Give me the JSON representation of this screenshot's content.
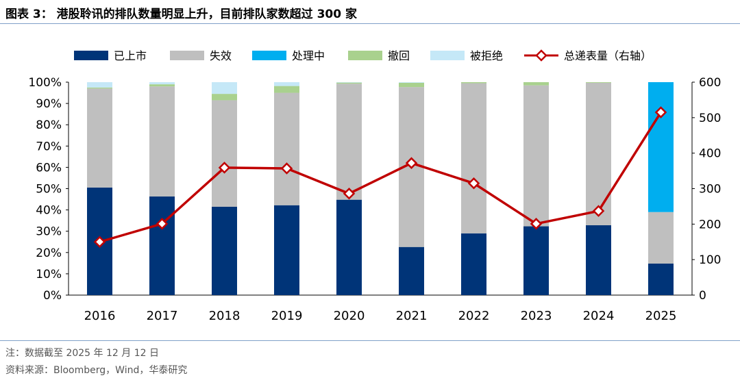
{
  "title": "图表 3：  港股聆讯的排队数量明显上升，目前排队家数超过 300 家",
  "footer": {
    "note": "注：数据截至 2025 年 12 月 12 日",
    "source": "资料来源：Bloomberg，Wind，华泰研究"
  },
  "chart_data": {
    "type": "bar",
    "stacked": true,
    "categories": [
      "2016",
      "2017",
      "2018",
      "2019",
      "2020",
      "2021",
      "2022",
      "2023",
      "2024",
      "2025"
    ],
    "series": [
      {
        "name": "已上市",
        "color": "#003478",
        "values": [
          50.5,
          46.3,
          41.5,
          42.2,
          44.8,
          22.6,
          29.0,
          32.3,
          32.8,
          14.8
        ]
      },
      {
        "name": "失效",
        "color": "#bfbfbf",
        "values": [
          46.5,
          51.7,
          50.0,
          52.8,
          54.5,
          75.1,
          70.5,
          66.2,
          66.9,
          24.2
        ]
      },
      {
        "name": "处理中",
        "color": "#00aeef",
        "values": [
          0,
          0,
          0,
          0,
          0,
          0,
          0,
          0,
          0,
          61.0
        ]
      },
      {
        "name": "撤回",
        "color": "#a9d18e",
        "values": [
          0.5,
          1.0,
          3.0,
          3.2,
          0.5,
          2.0,
          0.5,
          1.5,
          0.3,
          0
        ]
      },
      {
        "name": "被拒绝",
        "color": "#c5e8f7",
        "values": [
          2.5,
          1.0,
          5.5,
          1.8,
          0.2,
          0.3,
          0,
          0,
          0,
          0
        ]
      }
    ],
    "line": {
      "name": "总递表量（右轴）",
      "color": "#c00000",
      "axis": "right",
      "values": [
        150,
        201,
        359,
        357,
        286,
        372,
        315,
        201,
        237,
        515
      ]
    },
    "yleft": {
      "range": [
        0,
        100
      ],
      "ticks": [
        "0%",
        "10%",
        "20%",
        "30%",
        "40%",
        "50%",
        "60%",
        "70%",
        "80%",
        "90%",
        "100%"
      ]
    },
    "yright": {
      "range": [
        0,
        600
      ],
      "ticks": [
        "0",
        "100",
        "200",
        "300",
        "400",
        "500",
        "600"
      ]
    },
    "legend": "top"
  }
}
